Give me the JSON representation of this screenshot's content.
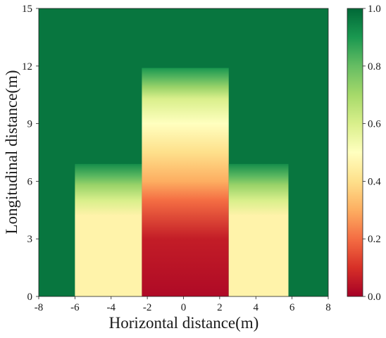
{
  "chart_data": {
    "type": "heatmap",
    "title": "",
    "xlabel": "Horizontal distance(m)",
    "ylabel": "Longitudinal distance(m)",
    "xlim": [
      -8,
      8
    ],
    "ylim": [
      0,
      15
    ],
    "x_ticks": [
      -8,
      -6,
      -4,
      -2,
      0,
      2,
      4,
      6,
      8
    ],
    "x_tick_labels": [
      "-8",
      "-6",
      "-4",
      "-2",
      "0",
      "2",
      "4",
      "6",
      "8"
    ],
    "y_ticks": [
      0,
      3,
      6,
      9,
      12,
      15
    ],
    "y_tick_labels": [
      "0",
      "3",
      "6",
      "9",
      "12",
      "15"
    ],
    "colormap": "RdYlGn",
    "colormap_stops": [
      "#a50026",
      "#d73027",
      "#f46d43",
      "#fdae61",
      "#fee08b",
      "#ffffbf",
      "#d9ef8b",
      "#a6d96a",
      "#66bd63",
      "#1a9850",
      "#006837"
    ],
    "color_range": [
      0.0,
      1.0
    ],
    "colorbar_ticks": [
      0.0,
      0.2,
      0.4,
      0.6,
      0.8,
      1.0
    ],
    "colorbar_tick_labels": [
      "0.0",
      "0.2",
      "0.4",
      "0.6",
      "0.8",
      "1.0"
    ],
    "background_value": 0.97,
    "regions": [
      {
        "name": "left-block",
        "x_range": [
          -6,
          -2.3
        ],
        "y_top": 6.9,
        "profile": [
          [
            0,
            0.46
          ],
          [
            4.2,
            0.46
          ],
          [
            5.0,
            0.6
          ],
          [
            5.8,
            0.72
          ],
          [
            6.3,
            0.82
          ],
          [
            6.9,
            0.92
          ]
        ]
      },
      {
        "name": "center-block",
        "x_range": [
          -2.3,
          2.5
        ],
        "y_top": 11.9,
        "profile": [
          [
            0,
            0.02
          ],
          [
            3.0,
            0.06
          ],
          [
            5.0,
            0.2
          ],
          [
            6.0,
            0.3
          ],
          [
            7.5,
            0.4
          ],
          [
            9.0,
            0.5
          ],
          [
            10.3,
            0.6
          ],
          [
            10.9,
            0.72
          ],
          [
            11.4,
            0.82
          ],
          [
            11.9,
            0.9
          ]
        ]
      },
      {
        "name": "right-block",
        "x_range": [
          2.5,
          5.8
        ],
        "y_top": 6.9,
        "profile": [
          [
            0,
            0.46
          ],
          [
            4.2,
            0.46
          ],
          [
            5.0,
            0.6
          ],
          [
            5.8,
            0.72
          ],
          [
            6.3,
            0.82
          ],
          [
            6.9,
            0.92
          ]
        ]
      }
    ]
  }
}
